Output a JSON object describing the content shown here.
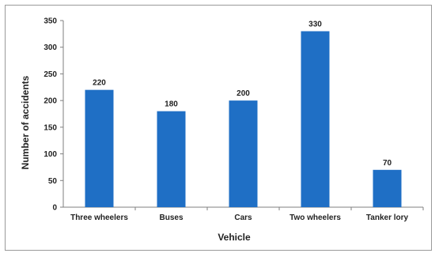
{
  "chart_data": {
    "type": "bar",
    "categories": [
      "Three wheelers",
      "Buses",
      "Cars",
      "Two wheelers",
      "Tanker lory"
    ],
    "values": [
      220,
      180,
      200,
      330,
      70
    ],
    "title": "",
    "xlabel": "Vehicle",
    "ylabel": "Number of accidents",
    "ylim": [
      0,
      350
    ],
    "yticks": [
      0,
      50,
      100,
      150,
      200,
      250,
      300,
      350
    ],
    "bar_color": "#1f6fc5",
    "grid": false,
    "legend": "none"
  }
}
